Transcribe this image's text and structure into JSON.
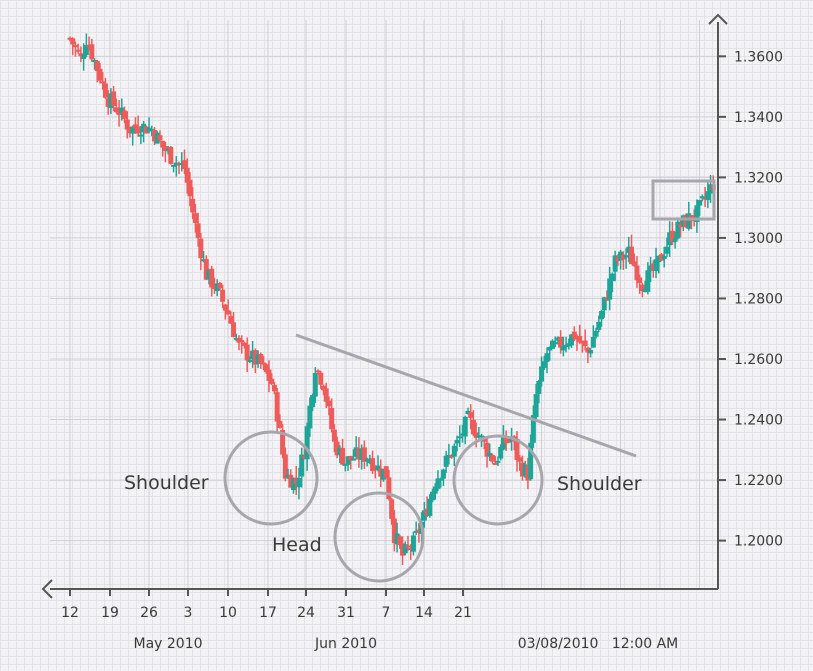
{
  "chart_data": {
    "type": "candlestick",
    "title": "",
    "colors": {
      "up": "#1fa598",
      "down": "#ee5b5b",
      "grid": "#cfcfd6",
      "axis": "#555555",
      "annotation": "#a6a6ac"
    },
    "y_ticks": [
      "1.3600",
      "1.3400",
      "1.3200",
      "1.3000",
      "1.2800",
      "1.2600",
      "1.2400",
      "1.2200",
      "1.2000"
    ],
    "y_tick_values": [
      1.36,
      1.34,
      1.32,
      1.3,
      1.28,
      1.26,
      1.24,
      1.22,
      1.2
    ],
    "ylim": [
      1.185,
      1.372
    ],
    "x_ticks": [
      "12",
      "19",
      "26",
      "3",
      "10",
      "17",
      "24",
      "31",
      "7",
      "14",
      "21"
    ],
    "x_tick_index": [
      1,
      11,
      21,
      31,
      41,
      51,
      61,
      71,
      81,
      91,
      101
    ],
    "x_count": 172,
    "month_labels": [
      "May 2010",
      "Jun 2010",
      "03/08/2010   12:00 AM"
    ],
    "annotations": {
      "left_shoulder": "Shoulder",
      "head": "Head",
      "right_shoulder": "Shoulder"
    },
    "anchors": [
      [
        0,
        1.366
      ],
      [
        4,
        1.359
      ],
      [
        6,
        1.366
      ],
      [
        10,
        1.356
      ],
      [
        14,
        1.346
      ],
      [
        18,
        1.342
      ],
      [
        22,
        1.336
      ],
      [
        26,
        1.337
      ],
      [
        30,
        1.336
      ],
      [
        34,
        1.33
      ],
      [
        38,
        1.326
      ],
      [
        42,
        1.323
      ],
      [
        46,
        1.304
      ],
      [
        50,
        1.288
      ],
      [
        54,
        1.283
      ],
      [
        58,
        1.275
      ],
      [
        62,
        1.264
      ],
      [
        66,
        1.261
      ],
      [
        70,
        1.258
      ],
      [
        74,
        1.252
      ],
      [
        76,
        1.242
      ],
      [
        79,
        1.222
      ],
      [
        83,
        1.219
      ],
      [
        86,
        1.23
      ],
      [
        90,
        1.258
      ],
      [
        93,
        1.252
      ],
      [
        97,
        1.232
      ],
      [
        101,
        1.226
      ],
      [
        105,
        1.228
      ],
      [
        109,
        1.228
      ],
      [
        113,
        1.224
      ],
      [
        116,
        1.222
      ],
      [
        119,
        1.202
      ],
      [
        122,
        1.195
      ],
      [
        126,
        1.199
      ],
      [
        130,
        1.208
      ],
      [
        134,
        1.22
      ],
      [
        138,
        1.226
      ],
      [
        142,
        1.232
      ],
      [
        146,
        1.24
      ],
      [
        150,
        1.235
      ],
      [
        153,
        1.23
      ],
      [
        156,
        1.226
      ],
      [
        159,
        1.232
      ],
      [
        162,
        1.234
      ],
      [
        165,
        1.225
      ],
      [
        168,
        1.222
      ],
      [
        171,
        1.248
      ],
      [
        175,
        1.262
      ],
      [
        180,
        1.265
      ],
      [
        185,
        1.268
      ],
      [
        190,
        1.262
      ],
      [
        195,
        1.275
      ],
      [
        200,
        1.292
      ],
      [
        205,
        1.295
      ],
      [
        210,
        1.285
      ],
      [
        215,
        1.29
      ],
      [
        220,
        1.3
      ],
      [
        225,
        1.305
      ],
      [
        230,
        1.308
      ],
      [
        236,
        1.318
      ]
    ]
  }
}
